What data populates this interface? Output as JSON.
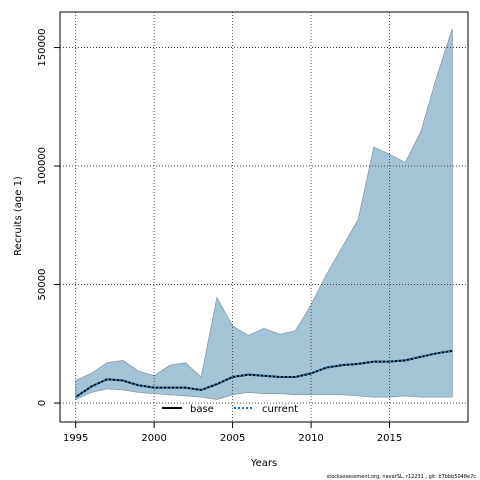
{
  "chart_data": {
    "type": "area",
    "title": "",
    "xlabel": "Years",
    "ylabel": "Recruits (age 1)",
    "xlim": [
      1994,
      2020
    ],
    "ylim": [
      -8000,
      165000
    ],
    "x_ticks": [
      1995,
      2000,
      2005,
      2010,
      2015
    ],
    "y_ticks": [
      0,
      50000,
      100000,
      150000
    ],
    "grid": true,
    "legend_position": "bottom-center",
    "band": {
      "color": "#a3c4d6",
      "x": [
        1995,
        1996,
        1997,
        1998,
        1999,
        2000,
        2001,
        2002,
        2003,
        2004,
        2005,
        2006,
        2007,
        2008,
        2009,
        2010,
        2011,
        2012,
        2013,
        2014,
        2015,
        2016,
        2017,
        2018,
        2019
      ],
      "upper": [
        9500,
        12500,
        17000,
        18000,
        13500,
        11500,
        16000,
        17000,
        11000,
        44500,
        32500,
        28500,
        31500,
        29000,
        30500,
        41500,
        54500,
        66000,
        77500,
        108000,
        105000,
        101500,
        114500,
        137500,
        158000
      ],
      "lower": [
        1500,
        4500,
        6000,
        5500,
        4500,
        4000,
        3500,
        3000,
        2500,
        1500,
        3500,
        4500,
        4000,
        4000,
        3500,
        3500,
        3500,
        3500,
        3000,
        2500,
        2500,
        3000,
        2500,
        2500,
        2500
      ]
    },
    "series": [
      {
        "name": "base",
        "color": "#000000",
        "style": "solid",
        "x": [
          1995,
          1996,
          1997,
          1998,
          1999,
          2000,
          2001,
          2002,
          2003,
          2004,
          2005,
          2006,
          2007,
          2008,
          2009,
          2010,
          2011,
          2012,
          2013,
          2014,
          2015,
          2016,
          2017,
          2018,
          2019
        ],
        "values": [
          2500,
          7000,
          10000,
          9500,
          7500,
          6500,
          6500,
          6500,
          5500,
          8000,
          11000,
          12000,
          11500,
          11000,
          11000,
          12500,
          15000,
          16000,
          16500,
          17500,
          17500,
          18000,
          19500,
          21000,
          22000
        ]
      },
      {
        "name": "current",
        "color": "#1f77b4",
        "style": "dashed",
        "x": [
          1995,
          1996,
          1997,
          1998,
          1999,
          2000,
          2001,
          2002,
          2003,
          2004,
          2005,
          2006,
          2007,
          2008,
          2009,
          2010,
          2011,
          2012,
          2013,
          2014,
          2015,
          2016,
          2017,
          2018,
          2019
        ],
        "values": [
          2500,
          7000,
          10000,
          9500,
          7500,
          6500,
          6500,
          6500,
          5500,
          8000,
          11000,
          12000,
          11500,
          11000,
          11000,
          12500,
          15000,
          16000,
          16500,
          17500,
          17500,
          18000,
          19500,
          21000,
          22000
        ]
      }
    ],
    "footer": "stockassessment.org, navarSL, r12231 , git: b7bbb5048e7c"
  }
}
